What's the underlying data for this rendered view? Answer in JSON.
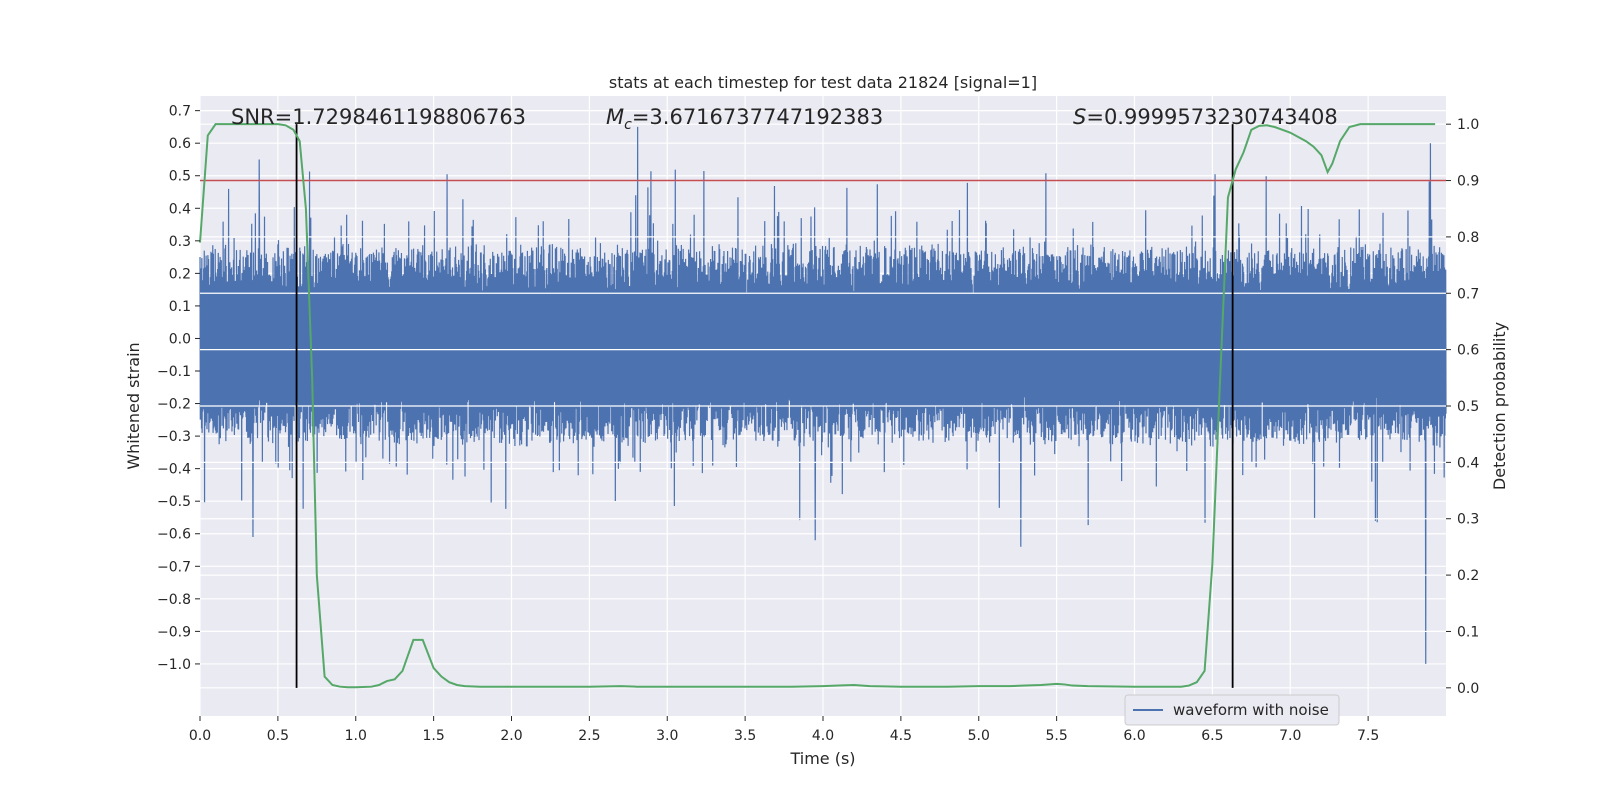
{
  "chart_data": {
    "type": "line",
    "title": "stats at each timestep for test data 21824 [signal=1]",
    "xlabel": "Time (s)",
    "ylabel": "Whitened strain",
    "y2label": "Detection probability",
    "xlim": [
      0.0,
      8.0
    ],
    "ylim": [
      -1.16,
      0.745
    ],
    "y2lim": [
      -0.05,
      1.05
    ],
    "grid": true,
    "x_ticks": [
      0.0,
      0.5,
      1.0,
      1.5,
      2.0,
      2.5,
      3.0,
      3.5,
      4.0,
      4.5,
      5.0,
      5.5,
      6.0,
      6.5,
      7.0,
      7.5
    ],
    "x_tick_labels": [
      "0.0",
      "0.5",
      "1.0",
      "1.5",
      "2.0",
      "2.5",
      "3.0",
      "3.5",
      "4.0",
      "4.5",
      "5.0",
      "5.5",
      "6.0",
      "6.5",
      "7.0",
      "7.5"
    ],
    "y_ticks": [
      0.7,
      0.6,
      0.5,
      0.4,
      0.3,
      0.2,
      0.1,
      0.0,
      -0.1,
      -0.2,
      -0.3,
      -0.4,
      -0.5,
      -0.6,
      -0.7,
      -0.8,
      -0.9,
      -1.0
    ],
    "y_tick_labels": [
      "0.7",
      "0.6",
      "0.5",
      "0.4",
      "0.3",
      "0.2",
      "0.1",
      "0.0",
      "−0.1",
      "−0.2",
      "−0.3",
      "−0.4",
      "−0.5",
      "−0.6",
      "−0.7",
      "−0.8",
      "−0.9",
      "−1.0"
    ],
    "y2_ticks": [
      1.0,
      0.9,
      0.8,
      0.7,
      0.6,
      0.5,
      0.4,
      0.3,
      0.2,
      0.1,
      0.0
    ],
    "y2_tick_labels": [
      "1.0",
      "0.9",
      "0.8",
      "0.7",
      "0.6",
      "0.5",
      "0.4",
      "0.3",
      "0.2",
      "0.1",
      "0.0"
    ],
    "annotations": {
      "snr_label": "SNR=1.7298461198806763",
      "mc_symbol": "M",
      "mc_subscript": "c",
      "mc_value": "=3.6716737747192383",
      "s_symbol": "S",
      "s_value": "=0.9999573230743408"
    },
    "legend": {
      "label": "waveform with noise",
      "placement": "lower-right"
    },
    "threshold_line": {
      "y2": 0.9,
      "color": "#c44e52"
    },
    "detection_bounds_x": [
      0.62,
      6.63
    ],
    "waveform": {
      "name": "waveform with noise",
      "color": "#4c72b0",
      "x_range": [
        0.0,
        8.0
      ],
      "sample_count": 4096,
      "envelope_core": 0.3,
      "notable_peaks": [
        {
          "x": 0.34,
          "y": -0.61
        },
        {
          "x": 0.38,
          "y": 0.55
        },
        {
          "x": 2.81,
          "y": 0.65
        },
        {
          "x": 3.95,
          "y": -0.62
        },
        {
          "x": 5.27,
          "y": -0.64
        },
        {
          "x": 7.87,
          "y": -1.0
        },
        {
          "x": 7.9,
          "y": 0.6
        }
      ]
    },
    "series": [
      {
        "name": "detection probability",
        "axis": "y2",
        "color": "#55a868",
        "x": [
          0.0,
          0.05,
          0.1,
          0.15,
          0.2,
          0.3,
          0.4,
          0.5,
          0.55,
          0.6,
          0.64,
          0.68,
          0.72,
          0.75,
          0.8,
          0.85,
          0.9,
          0.95,
          1.0,
          1.1,
          1.15,
          1.2,
          1.25,
          1.3,
          1.37,
          1.43,
          1.5,
          1.55,
          1.6,
          1.65,
          1.7,
          1.8,
          1.9,
          2.0,
          2.2,
          2.5,
          2.7,
          2.8,
          3.0,
          3.2,
          3.5,
          3.8,
          4.0,
          4.1,
          4.2,
          4.3,
          4.5,
          4.8,
          5.0,
          5.2,
          5.3,
          5.4,
          5.5,
          5.55,
          5.6,
          5.7,
          6.0,
          6.2,
          6.3,
          6.35,
          6.4,
          6.45,
          6.5,
          6.55,
          6.6,
          6.65,
          6.7,
          6.75,
          6.8,
          6.85,
          6.9,
          6.95,
          7.0,
          7.1,
          7.15,
          7.2,
          7.24,
          7.27,
          7.32,
          7.38,
          7.45,
          7.5,
          7.6,
          7.8,
          7.93
        ],
        "y": [
          0.79,
          0.98,
          1.0,
          1.0,
          1.0,
          1.0,
          1.0,
          1.0,
          0.998,
          0.99,
          0.97,
          0.85,
          0.55,
          0.2,
          0.02,
          0.005,
          0.002,
          0.001,
          0.001,
          0.002,
          0.005,
          0.012,
          0.015,
          0.03,
          0.085,
          0.085,
          0.035,
          0.02,
          0.01,
          0.005,
          0.003,
          0.002,
          0.002,
          0.002,
          0.002,
          0.002,
          0.003,
          0.002,
          0.002,
          0.002,
          0.002,
          0.002,
          0.003,
          0.004,
          0.005,
          0.003,
          0.002,
          0.002,
          0.003,
          0.003,
          0.004,
          0.005,
          0.007,
          0.006,
          0.004,
          0.003,
          0.002,
          0.002,
          0.002,
          0.004,
          0.01,
          0.03,
          0.22,
          0.55,
          0.87,
          0.92,
          0.95,
          0.99,
          0.997,
          0.998,
          0.995,
          0.99,
          0.985,
          0.97,
          0.96,
          0.945,
          0.915,
          0.93,
          0.97,
          0.995,
          1.0,
          1.0,
          1.0,
          1.0,
          1.0
        ]
      }
    ]
  }
}
